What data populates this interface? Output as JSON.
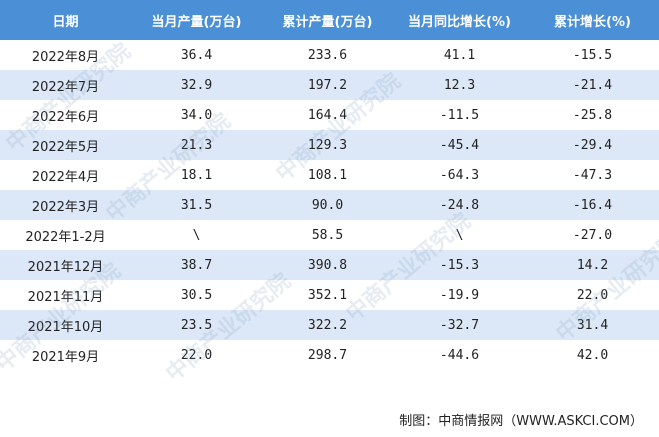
{
  "table": {
    "headers": [
      "日期",
      "当月产量(万台)",
      "累计产量(万台)",
      "当月同比增长(%)",
      "累计增长(%)"
    ],
    "rows": [
      [
        "2022年8月",
        "36.4",
        "233.6",
        "41.1",
        "-15.5"
      ],
      [
        "2022年7月",
        "32.9",
        "197.2",
        "12.3",
        "-21.4"
      ],
      [
        "2022年6月",
        "34.0",
        "164.4",
        "-11.5",
        "-25.8"
      ],
      [
        "2022年5月",
        "21.3",
        "129.3",
        "-45.4",
        "-29.4"
      ],
      [
        "2022年4月",
        "18.1",
        "108.1",
        "-64.3",
        "-47.3"
      ],
      [
        "2022年3月",
        "31.5",
        "90.0",
        "-24.8",
        "-16.4"
      ],
      [
        "2022年1-2月",
        "\\",
        "58.5",
        "\\",
        "-27.0"
      ],
      [
        "2021年12月",
        "38.7",
        "390.8",
        "-15.3",
        "14.2"
      ],
      [
        "2021年11月",
        "30.5",
        "352.1",
        "-19.9",
        "22.0"
      ],
      [
        "2021年10月",
        "23.5",
        "322.2",
        "-32.7",
        "31.4"
      ],
      [
        "2021年9月",
        "22.0",
        "298.7",
        "-44.6",
        "42.0"
      ]
    ]
  },
  "footer": {
    "source": "制图：中商情报网（WWW.ASKCI.COM）"
  },
  "watermark": {
    "text": "中商产业研究院"
  },
  "colors": {
    "header_bg": "#4b8fd6",
    "stripe_bg": "#dce8f7"
  }
}
